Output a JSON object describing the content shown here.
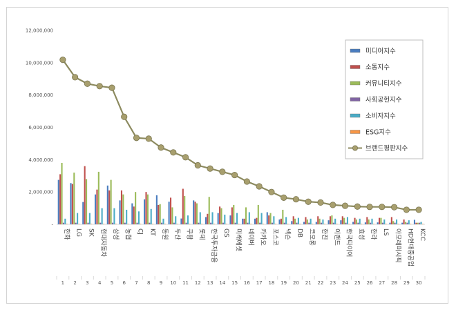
{
  "chart_data": {
    "type": "bar",
    "title": "",
    "xlabel": "",
    "ylabel": "",
    "ylim": [
      0,
      12000000
    ],
    "y_ticks": [
      "-",
      "2,000,000",
      "4,000,000",
      "6,000,000",
      "8,000,000",
      "10,000,000",
      "12,000,000"
    ],
    "grid": false,
    "legend_position": "top-right",
    "categories": [
      "한화",
      "LG",
      "SK",
      "현대자동차",
      "삼성",
      "농협",
      "CJ",
      "KT",
      "동원",
      "두산",
      "쿠팡",
      "롯데",
      "한국투자금융",
      "GS",
      "미래에셋",
      "네이버",
      "카카오",
      "포스코",
      "넥슨",
      "DB",
      "코오롱",
      "한진",
      "이랜드",
      "한국타이어",
      "효성",
      "한라",
      "LS",
      "아모레퍼시픽",
      "HD현대중공업",
      "KCC"
    ],
    "ranks": [
      "1",
      "2",
      "3",
      "4",
      "5",
      "6",
      "7",
      "8",
      "9",
      "10",
      "11",
      "12",
      "13",
      "14",
      "15",
      "16",
      "17",
      "18",
      "19",
      "20",
      "21",
      "22",
      "23",
      "24",
      "25",
      "26",
      "27",
      "28",
      "29",
      "30"
    ],
    "series": [
      {
        "name": "미디어지수",
        "kind": "bar",
        "color": "#4a7dbf",
        "values": [
          2750000,
          2550000,
          1380000,
          1850000,
          2400000,
          1480000,
          1300000,
          1550000,
          1800000,
          1400000,
          360000,
          1480000,
          450000,
          700000,
          550000,
          350000,
          350000,
          750000,
          300000,
          200000,
          150000,
          150000,
          250000,
          250000,
          150000,
          120000,
          120000,
          100000,
          100000,
          280000
        ]
      },
      {
        "name": "소통지수",
        "kind": "bar",
        "color": "#c0504d",
        "values": [
          3100000,
          2500000,
          3600000,
          2150000,
          2100000,
          2100000,
          1100000,
          2000000,
          1200000,
          1650000,
          2200000,
          1400000,
          650000,
          1100000,
          1050000,
          350000,
          400000,
          550000,
          350000,
          500000,
          450000,
          500000,
          500000,
          500000,
          400000,
          450000,
          400000,
          450000,
          300000,
          100000
        ]
      },
      {
        "name": "커뮤니티지수",
        "kind": "bar",
        "color": "#9bbb59",
        "values": [
          3800000,
          3200000,
          2800000,
          3250000,
          2750000,
          1850000,
          2000000,
          1850000,
          1250000,
          1050000,
          1750000,
          1300000,
          1700000,
          1000000,
          1200000,
          1050000,
          1200000,
          700000,
          900000,
          350000,
          300000,
          350000,
          550000,
          400000,
          300000,
          300000,
          400000,
          200000,
          150000,
          100000
        ]
      },
      {
        "name": "사회공헌지수",
        "kind": "bar",
        "color": "#8064a2",
        "values": [
          100000,
          100000,
          100000,
          100000,
          100000,
          100000,
          100000,
          100000,
          100000,
          100000,
          100000,
          100000,
          100000,
          100000,
          100000,
          100000,
          100000,
          100000,
          100000,
          100000,
          100000,
          100000,
          100000,
          100000,
          100000,
          100000,
          100000,
          100000,
          100000,
          100000
        ]
      },
      {
        "name": "소비자지수",
        "kind": "bar",
        "color": "#4bacc6",
        "values": [
          350000,
          700000,
          700000,
          1000000,
          1000000,
          900000,
          800000,
          950000,
          350000,
          500000,
          550000,
          750000,
          750000,
          600000,
          700000,
          750000,
          700000,
          500000,
          450000,
          400000,
          350000,
          300000,
          350000,
          450000,
          350000,
          350000,
          300000,
          300000,
          250000,
          150000
        ]
      },
      {
        "name": "ESG지수",
        "kind": "bar",
        "color": "#f79646",
        "values": [
          30000,
          30000,
          30000,
          30000,
          30000,
          30000,
          30000,
          30000,
          30000,
          30000,
          30000,
          30000,
          30000,
          30000,
          30000,
          30000,
          30000,
          30000,
          30000,
          30000,
          30000,
          30000,
          30000,
          30000,
          30000,
          30000,
          30000,
          30000,
          30000,
          30000
        ]
      },
      {
        "name": "브랜드평판지수",
        "kind": "line",
        "color": "#8c8a5f",
        "marker_color": "#a89f6e",
        "values": [
          10180000,
          9100000,
          8700000,
          8550000,
          8450000,
          6650000,
          5350000,
          5300000,
          4750000,
          4450000,
          4150000,
          3650000,
          3450000,
          3250000,
          3050000,
          2650000,
          2350000,
          2000000,
          1650000,
          1550000,
          1400000,
          1350000,
          1200000,
          1150000,
          1100000,
          1080000,
          1080000,
          1060000,
          900000,
          900000
        ]
      }
    ]
  }
}
